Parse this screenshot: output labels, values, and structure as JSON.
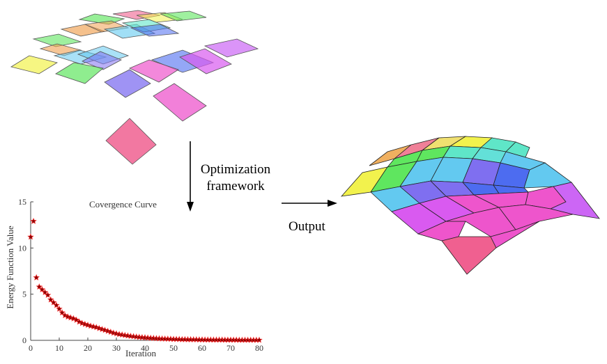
{
  "labels": {
    "optimization_line1": "Optimization",
    "optimization_line2": "framework",
    "output": "Output"
  },
  "colors": {
    "palette": [
      "#f2f24d",
      "#5fe65f",
      "#63c9f0",
      "#7f6ff0",
      "#ee55cc",
      "#d95af0",
      "#f06090",
      "#f0a050",
      "#5fe6c8",
      "#4d6cf0",
      "#cc66f5"
    ],
    "marker": "#8b0000",
    "marker_edge": "#ff3030"
  },
  "chart_data": {
    "type": "scatter",
    "title": "Covergence Curve",
    "xlabel": "Iteration",
    "ylabel": "Energy Function Value",
    "xlim": [
      0,
      80
    ],
    "ylim": [
      0,
      15
    ],
    "xticks": [
      0,
      10,
      20,
      30,
      40,
      50,
      60,
      70,
      80
    ],
    "yticks": [
      0,
      5,
      10,
      15
    ],
    "grid": false,
    "marker": "star",
    "x": [
      0,
      1,
      2,
      3,
      4,
      5,
      6,
      7,
      8,
      9,
      10,
      11,
      12,
      13,
      14,
      15,
      16,
      17,
      18,
      19,
      20,
      21,
      22,
      23,
      24,
      25,
      26,
      27,
      28,
      29,
      30,
      31,
      32,
      33,
      34,
      35,
      36,
      37,
      38,
      39,
      40,
      41,
      42,
      43,
      44,
      45,
      46,
      47,
      48,
      49,
      50,
      51,
      52,
      53,
      54,
      55,
      56,
      57,
      58,
      59,
      60,
      61,
      62,
      63,
      64,
      65,
      66,
      67,
      68,
      69,
      70,
      71,
      72,
      73,
      74,
      75,
      76,
      77,
      78,
      79,
      80
    ],
    "y": [
      11.2,
      12.9,
      6.8,
      5.8,
      5.5,
      5.2,
      4.9,
      4.4,
      4.1,
      3.8,
      3.4,
      3.0,
      2.7,
      2.55,
      2.45,
      2.35,
      2.2,
      2.0,
      1.85,
      1.75,
      1.65,
      1.55,
      1.48,
      1.4,
      1.3,
      1.2,
      1.1,
      1.0,
      0.9,
      0.8,
      0.72,
      0.65,
      0.6,
      0.55,
      0.5,
      0.45,
      0.42,
      0.38,
      0.35,
      0.32,
      0.3,
      0.27,
      0.25,
      0.23,
      0.21,
      0.19,
      0.17,
      0.16,
      0.15,
      0.14,
      0.13,
      0.12,
      0.11,
      0.1,
      0.1,
      0.09,
      0.09,
      0.08,
      0.08,
      0.07,
      0.07,
      0.06,
      0.06,
      0.06,
      0.05,
      0.05,
      0.05,
      0.05,
      0.04,
      0.04,
      0.04,
      0.04,
      0.04,
      0.03,
      0.03,
      0.03,
      0.03,
      0.03,
      0.03,
      0.03,
      0.03
    ]
  }
}
